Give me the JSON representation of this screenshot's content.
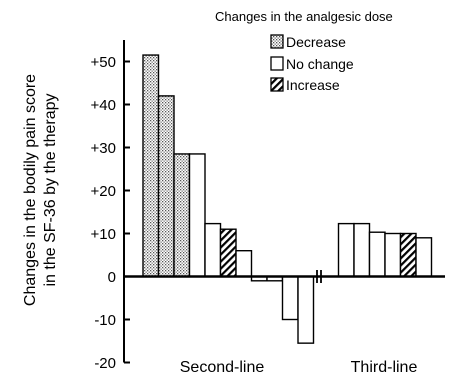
{
  "chart_data": {
    "type": "bar",
    "ylabel": "Changes in the bodily pain score in the SF-36 by the therapy",
    "ylabel_lines": [
      "Changes in the bodily pain score",
      "in the SF-36 by the therapy"
    ],
    "ylim": [
      -20,
      55
    ],
    "yticks": [
      -20,
      -10,
      0,
      10,
      20,
      30,
      40,
      50
    ],
    "ytick_labels": [
      "-20",
      "-10",
      "0",
      "+10",
      "+20",
      "+30",
      "+40",
      "+50"
    ],
    "categories": [
      "Second-line",
      "Third-line"
    ],
    "legend": {
      "title": "Changes in the analgesic dose",
      "placement": "top-right",
      "entries": [
        {
          "label": "Decrease",
          "pattern": "dotted"
        },
        {
          "label": "No change",
          "pattern": "plain"
        },
        {
          "label": "Increase",
          "pattern": "hatched"
        }
      ]
    },
    "bars": [
      {
        "group": "Second-line",
        "value": 51.5,
        "pattern": "dotted"
      },
      {
        "group": "Second-line",
        "value": 42,
        "pattern": "dotted"
      },
      {
        "group": "Second-line",
        "value": 28.5,
        "pattern": "dotted"
      },
      {
        "group": "Second-line",
        "value": 28.5,
        "pattern": "plain"
      },
      {
        "group": "Second-line",
        "value": 12.3,
        "pattern": "plain"
      },
      {
        "group": "Second-line",
        "value": 11,
        "pattern": "hatched"
      },
      {
        "group": "Second-line",
        "value": 6,
        "pattern": "plain"
      },
      {
        "group": "Second-line",
        "value": -1,
        "pattern": "plain"
      },
      {
        "group": "Second-line",
        "value": -1,
        "pattern": "plain"
      },
      {
        "group": "Second-line",
        "value": -10,
        "pattern": "plain"
      },
      {
        "group": "Second-line",
        "value": -15.5,
        "pattern": "plain"
      },
      {
        "group": "Third-line",
        "value": 12.3,
        "pattern": "plain"
      },
      {
        "group": "Third-line",
        "value": 12.3,
        "pattern": "plain"
      },
      {
        "group": "Third-line",
        "value": 10.3,
        "pattern": "plain"
      },
      {
        "group": "Third-line",
        "value": 10,
        "pattern": "plain"
      },
      {
        "group": "Third-line",
        "value": 10,
        "pattern": "hatched"
      },
      {
        "group": "Third-line",
        "value": 9,
        "pattern": "plain"
      }
    ]
  }
}
